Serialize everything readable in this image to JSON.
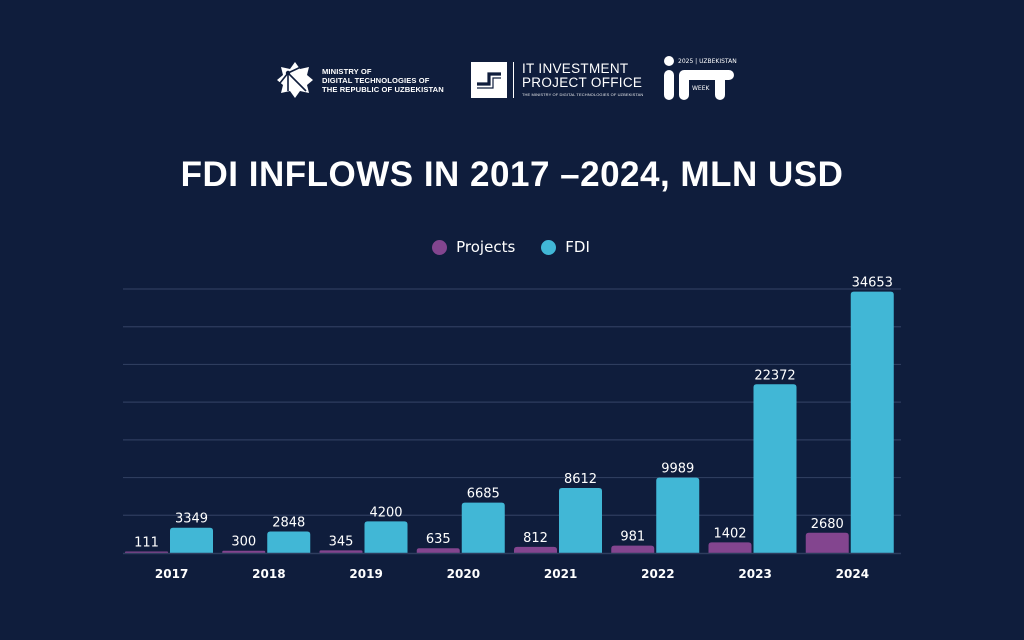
{
  "logos": {
    "ministry": {
      "lines": [
        "MINISTRY OF",
        "DIGITAL TECHNOLOGIES OF",
        "THE REPUBLIC OF UZBEKISTAN"
      ]
    },
    "itpo": {
      "line1": "IT INVESTMENT",
      "line2": "PROJECT OFFICE",
      "subtitle": "THE MINISTRY OF DIGITAL TECHNOLOGIES OF UZBEKISTAN"
    },
    "ictweek": {
      "top": "2025 | UZBEKISTAN",
      "mid": "WEEK"
    }
  },
  "colors": {
    "background": "#0f1d3c",
    "projects": "#83458f",
    "fdi": "#41b7d6",
    "grid": "#2e3d5e"
  },
  "chart_data": {
    "type": "bar",
    "title": "FDI INFLOWS IN 2017 –2024, MLN USD",
    "xlabel": "",
    "ylabel": "",
    "categories": [
      "2017",
      "2018",
      "2019",
      "2020",
      "2021",
      "2022",
      "2023",
      "2024"
    ],
    "series": [
      {
        "name": "Projects",
        "color": "#83458f",
        "values": [
          111,
          300,
          345,
          635,
          812,
          981,
          1402,
          2680
        ]
      },
      {
        "name": "FDI",
        "color": "#41b7d6",
        "values": [
          3349,
          2848,
          4200,
          6685,
          8612,
          9989,
          22372,
          34653
        ]
      }
    ],
    "ylim": [
      0,
      35000
    ],
    "yticks": [
      0,
      5000,
      10000,
      15000,
      20000,
      25000,
      30000,
      35000
    ],
    "grid": true,
    "legend_position": "top-center",
    "data_labels": true
  }
}
